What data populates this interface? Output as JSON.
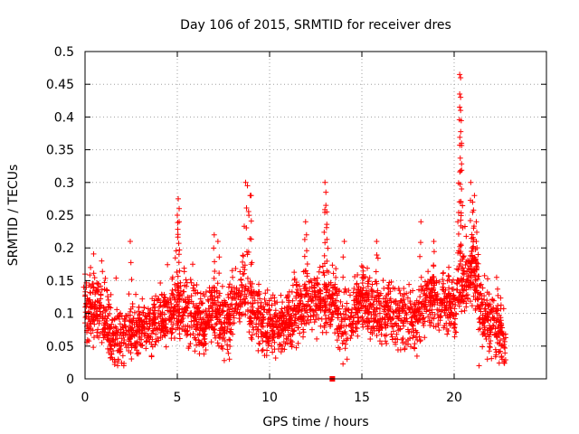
{
  "chart_data": {
    "type": "scatter",
    "title": "Day 106 of 2015, SRMTID for receiver dres",
    "xlabel": "GPS time / hours",
    "ylabel": "SRMTID / TECUs",
    "xlim": [
      0,
      25
    ],
    "ylim": [
      0,
      0.5
    ],
    "xticks": [
      0,
      5,
      10,
      15,
      20
    ],
    "xtick_labels": [
      "0",
      "5",
      "10",
      "15",
      "20"
    ],
    "yticks": [
      0,
      0.05,
      0.1,
      0.15,
      0.2,
      0.25,
      0.3,
      0.35,
      0.4,
      0.45,
      0.5
    ],
    "ytick_labels": [
      "0",
      "0.05",
      "0.1",
      "0.15",
      "0.2",
      "0.25",
      "0.3",
      "0.35",
      "0.4",
      "0.45",
      "0.5"
    ],
    "grid": true,
    "marker": "+",
    "color": "#ff0000",
    "series": [
      {
        "name": "SRMTID",
        "baseline": [
          {
            "x": 0.0,
            "y": 0.1
          },
          {
            "x": 0.5,
            "y": 0.11
          },
          {
            "x": 1.0,
            "y": 0.09
          },
          {
            "x": 1.5,
            "y": 0.06
          },
          {
            "x": 2.0,
            "y": 0.065
          },
          {
            "x": 2.5,
            "y": 0.07
          },
          {
            "x": 3.0,
            "y": 0.075
          },
          {
            "x": 3.5,
            "y": 0.085
          },
          {
            "x": 4.0,
            "y": 0.09
          },
          {
            "x": 4.5,
            "y": 0.1
          },
          {
            "x": 5.0,
            "y": 0.11
          },
          {
            "x": 5.5,
            "y": 0.1
          },
          {
            "x": 6.0,
            "y": 0.09
          },
          {
            "x": 6.5,
            "y": 0.085
          },
          {
            "x": 7.0,
            "y": 0.11
          },
          {
            "x": 7.5,
            "y": 0.08
          },
          {
            "x": 8.0,
            "y": 0.1
          },
          {
            "x": 8.5,
            "y": 0.14
          },
          {
            "x": 9.0,
            "y": 0.11
          },
          {
            "x": 9.5,
            "y": 0.09
          },
          {
            "x": 10.0,
            "y": 0.08
          },
          {
            "x": 10.5,
            "y": 0.085
          },
          {
            "x": 11.0,
            "y": 0.09
          },
          {
            "x": 11.5,
            "y": 0.1
          },
          {
            "x": 12.0,
            "y": 0.12
          },
          {
            "x": 12.5,
            "y": 0.11
          },
          {
            "x": 13.0,
            "y": 0.11
          },
          {
            "x": 13.5,
            "y": 0.12
          },
          {
            "x": 14.0,
            "y": 0.08
          },
          {
            "x": 14.5,
            "y": 0.1
          },
          {
            "x": 15.0,
            "y": 0.12
          },
          {
            "x": 15.5,
            "y": 0.11
          },
          {
            "x": 16.0,
            "y": 0.1
          },
          {
            "x": 16.5,
            "y": 0.1
          },
          {
            "x": 17.0,
            "y": 0.09
          },
          {
            "x": 17.5,
            "y": 0.09
          },
          {
            "x": 18.0,
            "y": 0.09
          },
          {
            "x": 18.5,
            "y": 0.12
          },
          {
            "x": 19.0,
            "y": 0.12
          },
          {
            "x": 19.5,
            "y": 0.12
          },
          {
            "x": 20.0,
            "y": 0.11
          },
          {
            "x": 20.5,
            "y": 0.15
          },
          {
            "x": 21.0,
            "y": 0.17
          },
          {
            "x": 21.5,
            "y": 0.1
          },
          {
            "x": 22.0,
            "y": 0.08
          },
          {
            "x": 22.5,
            "y": 0.07
          },
          {
            "x": 22.8,
            "y": 0.05
          }
        ],
        "peaks": [
          {
            "x": 0.0,
            "y": 0.16
          },
          {
            "x": 0.3,
            "y": 0.17
          },
          {
            "x": 0.9,
            "y": 0.18
          },
          {
            "x": 2.45,
            "y": 0.21
          },
          {
            "x": 5.05,
            "y": 0.275
          },
          {
            "x": 5.1,
            "y": 0.26
          },
          {
            "x": 5.0,
            "y": 0.25
          },
          {
            "x": 5.1,
            "y": 0.24
          },
          {
            "x": 7.0,
            "y": 0.22
          },
          {
            "x": 7.2,
            "y": 0.21
          },
          {
            "x": 8.7,
            "y": 0.3
          },
          {
            "x": 8.8,
            "y": 0.295
          },
          {
            "x": 8.95,
            "y": 0.28
          },
          {
            "x": 9.0,
            "y": 0.28
          },
          {
            "x": 11.95,
            "y": 0.24
          },
          {
            "x": 12.0,
            "y": 0.22
          },
          {
            "x": 13.0,
            "y": 0.3
          },
          {
            "x": 13.05,
            "y": 0.285
          },
          {
            "x": 13.05,
            "y": 0.265
          },
          {
            "x": 13.1,
            "y": 0.255
          },
          {
            "x": 14.05,
            "y": 0.21
          },
          {
            "x": 15.8,
            "y": 0.21
          },
          {
            "x": 18.2,
            "y": 0.24
          },
          {
            "x": 18.9,
            "y": 0.21
          },
          {
            "x": 20.3,
            "y": 0.465
          },
          {
            "x": 20.35,
            "y": 0.46
          },
          {
            "x": 20.3,
            "y": 0.435
          },
          {
            "x": 20.35,
            "y": 0.43
          },
          {
            "x": 20.3,
            "y": 0.415
          },
          {
            "x": 20.35,
            "y": 0.41
          },
          {
            "x": 20.4,
            "y": 0.36
          },
          {
            "x": 20.2,
            "y": 0.24
          },
          {
            "x": 20.4,
            "y": 0.29
          },
          {
            "x": 20.9,
            "y": 0.3
          },
          {
            "x": 21.1,
            "y": 0.28
          },
          {
            "x": 21.0,
            "y": 0.27
          },
          {
            "x": 21.2,
            "y": 0.24
          },
          {
            "x": 21.2,
            "y": 0.21
          },
          {
            "x": 21.3,
            "y": 0.19
          },
          {
            "x": 22.3,
            "y": 0.155
          },
          {
            "x": 21.35,
            "y": 0.02
          },
          {
            "x": 1.5,
            "y": 0.03
          },
          {
            "x": 2.1,
            "y": 0.02
          },
          {
            "x": 2.9,
            "y": 0.04
          },
          {
            "x": 14.2,
            "y": 0.03
          },
          {
            "x": 21.8,
            "y": 0.03
          },
          {
            "x": 22.6,
            "y": 0.03
          }
        ],
        "point_count_approx": 2700
      }
    ],
    "annotation_marker": {
      "x": 13.4,
      "y": 0,
      "shape": "square"
    }
  }
}
